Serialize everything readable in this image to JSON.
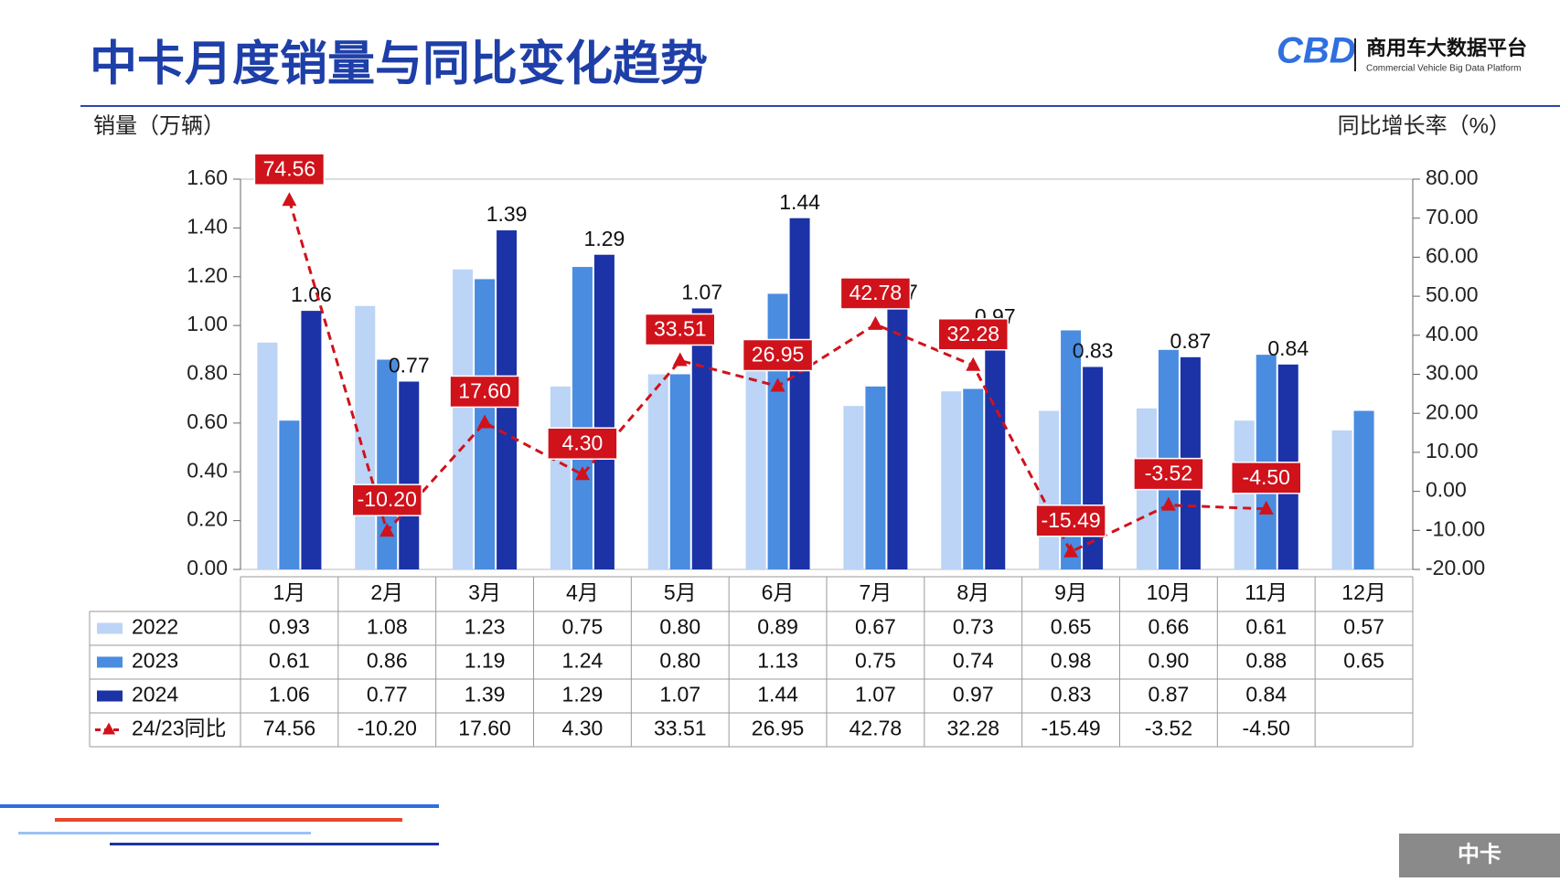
{
  "logo": {
    "mark": "CBD",
    "name": "商用车大数据平台",
    "subtitle": "Commercial Vehicle Big Data Platform"
  },
  "tag": "中卡",
  "chart_data": {
    "type": "bar",
    "title": "中卡月度销量与同比变化趋势",
    "ylabel": "销量（万辆）",
    "y2label": "同比增长率（%）",
    "categories": [
      "1月",
      "2月",
      "3月",
      "4月",
      "5月",
      "6月",
      "7月",
      "8月",
      "9月",
      "10月",
      "11月",
      "12月"
    ],
    "ylim": [
      0,
      1.6
    ],
    "yticks": [
      {
        "value": 0,
        "label": "0.00"
      },
      {
        "value": 0.2,
        "label": "0.20"
      },
      {
        "value": 0.4,
        "label": "0.40"
      },
      {
        "value": 0.6,
        "label": "0.60"
      },
      {
        "value": 0.8,
        "label": "0.80"
      },
      {
        "value": 1,
        "label": "1.00"
      },
      {
        "value": 1.2,
        "label": "1.20"
      },
      {
        "value": 1.4,
        "label": "1.40"
      },
      {
        "value": 1.6,
        "label": "1.60"
      }
    ],
    "y2lim": [
      -20,
      80
    ],
    "y2ticks": [
      {
        "value": -20,
        "label": "-20.00"
      },
      {
        "value": -10,
        "label": "-10.00"
      },
      {
        "value": 0,
        "label": "0.00"
      },
      {
        "value": 10,
        "label": "10.00"
      },
      {
        "value": 20,
        "label": "20.00"
      },
      {
        "value": 30,
        "label": "30.00"
      },
      {
        "value": 40,
        "label": "40.00"
      },
      {
        "value": 50,
        "label": "50.00"
      },
      {
        "value": 60,
        "label": "60.00"
      },
      {
        "value": 70,
        "label": "70.00"
      },
      {
        "value": 80,
        "label": "80.00"
      }
    ],
    "series": [
      {
        "name": "2022",
        "type": "bar",
        "color": "#bcd4f6",
        "values": [
          0.93,
          1.08,
          1.23,
          0.75,
          0.8,
          0.89,
          0.67,
          0.73,
          0.65,
          0.66,
          0.61,
          0.57
        ],
        "value_labels": [
          "0.93",
          "1.08",
          "1.23",
          "0.75",
          "0.80",
          "0.89",
          "0.67",
          "0.73",
          "0.65",
          "0.66",
          "0.61",
          "0.57"
        ]
      },
      {
        "name": "2023",
        "type": "bar",
        "color": "#4a8ce0",
        "values": [
          0.61,
          0.86,
          1.19,
          1.24,
          0.8,
          1.13,
          0.75,
          0.74,
          0.98,
          0.9,
          0.88,
          0.65
        ],
        "value_labels": [
          "0.61",
          "0.86",
          "1.19",
          "1.24",
          "0.80",
          "1.13",
          "0.75",
          "0.74",
          "0.98",
          "0.90",
          "0.88",
          "0.65"
        ]
      },
      {
        "name": "2024",
        "type": "bar",
        "color": "#1b33a6",
        "values": [
          1.06,
          0.77,
          1.39,
          1.29,
          1.07,
          1.44,
          1.07,
          0.97,
          0.83,
          0.87,
          0.84,
          null
        ],
        "value_labels": [
          "1.06",
          "0.77",
          "1.39",
          "1.29",
          "1.07",
          "1.44",
          "1.07",
          "0.97",
          "0.83",
          "0.87",
          "0.84",
          null
        ]
      },
      {
        "name": "24/23同比",
        "type": "line",
        "axis": "y2",
        "color": "#d0121b",
        "values": [
          74.56,
          -10.2,
          17.6,
          4.3,
          33.51,
          26.95,
          42.78,
          32.28,
          -15.49,
          -3.52,
          -4.5,
          null
        ],
        "value_labels": [
          "74.56",
          "-10.20",
          "17.60",
          "4.30",
          "33.51",
          "26.95",
          "42.78",
          "32.28",
          "-15.49",
          "-3.52",
          "-4.50",
          null
        ]
      }
    ]
  }
}
